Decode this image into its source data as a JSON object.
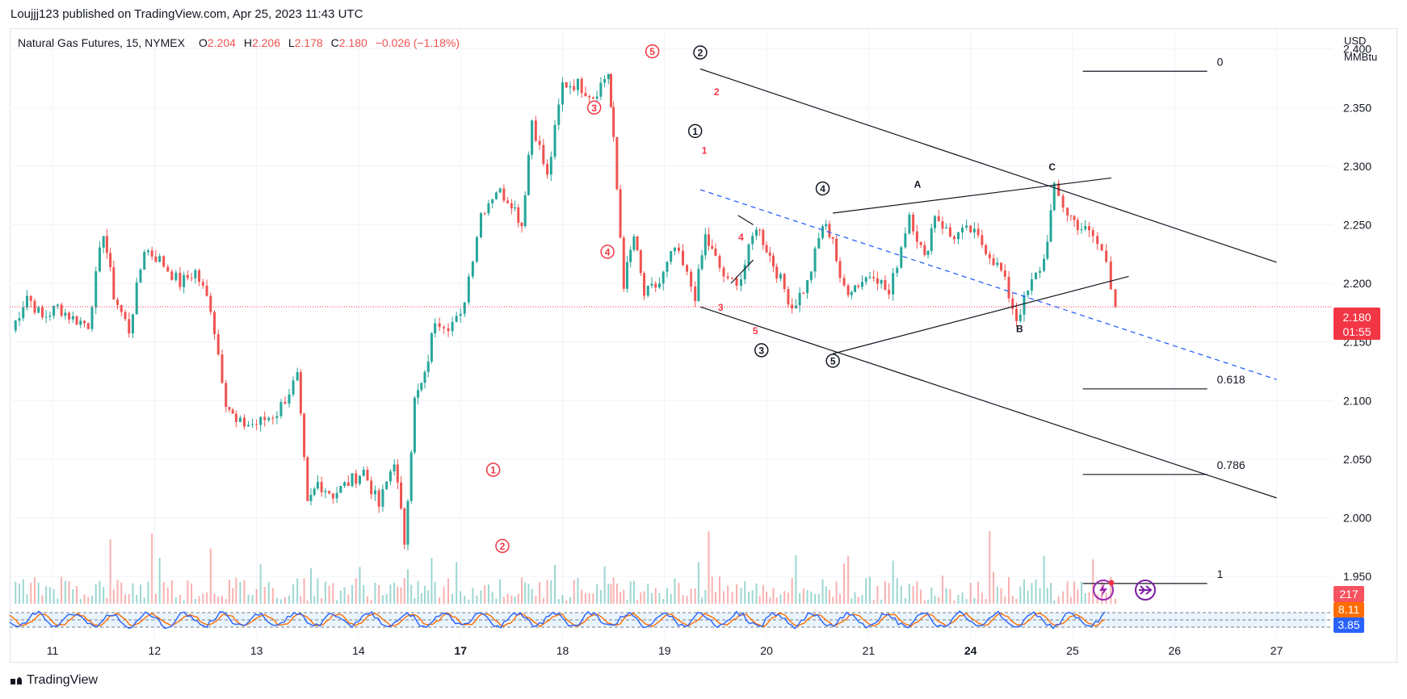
{
  "publisher": "Loujjj123 published on TradingView.com, Apr 25, 2023 11:43 UTC",
  "footer_brand": "TradingView",
  "legend": {
    "symbol": "Natural Gas Futures, 15, NYMEX",
    "o_label": "O",
    "o": "2.204",
    "h_label": "H",
    "h": "2.206",
    "l_label": "L",
    "l": "2.178",
    "c_label": "C",
    "c": "2.180",
    "change": "−0.026 (−1.18%)"
  },
  "colors": {
    "up": "#26a69a",
    "down": "#ef5350",
    "wave_red": "#f23645",
    "line": "#131722",
    "dash": "#2962ff",
    "rsi_fast": "#2962ff",
    "rsi_slow": "#ff6d00"
  },
  "price_badge": {
    "price": "2.180",
    "timer": "01:55"
  },
  "volume_badge": "217",
  "osc_badges": [
    "8.11",
    "3.85"
  ],
  "chart_data": {
    "type": "line",
    "title": "",
    "xlabel": "",
    "ylabel": "",
    "unit": "USD\nMMBtu",
    "unit_lines": [
      "USD",
      "MMBtu"
    ],
    "ylim": [
      1.915,
      2.417
    ],
    "yticks": [
      "2.400",
      "2.350",
      "2.300",
      "2.250",
      "2.200",
      "2.150",
      "2.100",
      "2.050",
      "2.000",
      "1.950"
    ],
    "xticks": [
      {
        "label": "11",
        "day": 11,
        "bold": false
      },
      {
        "label": "12",
        "day": 12,
        "bold": false
      },
      {
        "label": "13",
        "day": 13,
        "bold": false
      },
      {
        "label": "14",
        "day": 14,
        "bold": false
      },
      {
        "label": "17",
        "day": 15,
        "bold": true
      },
      {
        "label": "18",
        "day": 16,
        "bold": false
      },
      {
        "label": "19",
        "day": 17,
        "bold": false
      },
      {
        "label": "20",
        "day": 18,
        "bold": false
      },
      {
        "label": "21",
        "day": 19,
        "bold": false
      },
      {
        "label": "24",
        "day": 20,
        "bold": true
      },
      {
        "label": "25",
        "day": 21,
        "bold": false
      },
      {
        "label": "26",
        "day": 22,
        "bold": false
      },
      {
        "label": "27",
        "day": 23,
        "bold": false
      }
    ],
    "xlim": [
      10.58,
      23.55
    ],
    "grid": true,
    "price": {
      "x": [
        10.6,
        10.75,
        10.9,
        11.05,
        11.2,
        11.35,
        11.5,
        11.6,
        11.75,
        11.9,
        12.05,
        12.25,
        12.4,
        12.55,
        12.7,
        12.8,
        13.0,
        13.2,
        13.4,
        13.5,
        13.6,
        13.75,
        13.9,
        14.05,
        14.2,
        14.35,
        14.45,
        14.55,
        14.65,
        14.75,
        14.88,
        15.0,
        15.2,
        15.35,
        15.5,
        15.6,
        15.7,
        15.85,
        16.0,
        16.15,
        16.3,
        16.45,
        16.5,
        16.6,
        16.7,
        16.8,
        16.95,
        17.1,
        17.3,
        17.4,
        17.5,
        17.62,
        17.75,
        17.9,
        18.0,
        18.1,
        18.25,
        18.4,
        18.55,
        18.65,
        18.72,
        18.8,
        18.9,
        19.05,
        19.2,
        19.4,
        19.55,
        19.65,
        19.8,
        20.0,
        20.15,
        20.3,
        20.45,
        20.6,
        20.72,
        20.82,
        20.95,
        21.05,
        21.2,
        21.33,
        21.42
      ],
      "close": [
        2.16,
        2.19,
        2.17,
        2.18,
        2.17,
        2.165,
        2.245,
        2.19,
        2.16,
        2.23,
        2.22,
        2.2,
        2.21,
        2.18,
        2.1,
        2.08,
        2.08,
        2.09,
        2.12,
        2.01,
        2.03,
        2.02,
        2.03,
        2.04,
        2.01,
        2.05,
        1.98,
        2.1,
        2.12,
        2.17,
        2.165,
        2.17,
        2.26,
        2.28,
        2.27,
        2.25,
        2.34,
        2.29,
        2.37,
        2.37,
        2.36,
        2.38,
        2.32,
        2.2,
        2.24,
        2.19,
        2.2,
        2.23,
        2.19,
        2.24,
        2.22,
        2.2,
        2.205,
        2.25,
        2.23,
        2.21,
        2.18,
        2.2,
        2.25,
        2.24,
        2.2,
        2.195,
        2.2,
        2.21,
        2.19,
        2.26,
        2.22,
        2.26,
        2.24,
        2.245,
        2.23,
        2.21,
        2.17,
        2.2,
        2.22,
        2.28,
        2.26,
        2.25,
        2.24,
        2.22,
        2.18
      ]
    },
    "volume": [
      217
    ],
    "oscillator": {
      "values": [
        "8.11",
        "3.85"
      ]
    },
    "wave_labels_black": [
      {
        "t": "2",
        "x": 17.35,
        "y": 2.397
      },
      {
        "t": "1",
        "x": 17.3,
        "y": 2.33
      },
      {
        "t": "4",
        "x": 18.55,
        "y": 2.281
      },
      {
        "t": "3",
        "x": 17.95,
        "y": 2.143
      },
      {
        "t": "5",
        "x": 18.65,
        "y": 2.134
      }
    ],
    "wave_labels_red": [
      {
        "t": "5",
        "x": 16.88,
        "y": 2.398
      },
      {
        "t": "3",
        "x": 16.31,
        "y": 2.35
      },
      {
        "t": "4",
        "x": 16.44,
        "y": 2.227
      },
      {
        "t": "1",
        "x": 15.32,
        "y": 2.041
      },
      {
        "t": "2",
        "x": 15.41,
        "y": 1.976
      }
    ],
    "wave_labels_small_red": [
      {
        "t": "2",
        "x": 17.51,
        "y": 2.364
      },
      {
        "t": "1",
        "x": 17.39,
        "y": 2.314
      },
      {
        "t": "4",
        "x": 17.75,
        "y": 2.24
      },
      {
        "t": "3",
        "x": 17.55,
        "y": 2.18
      },
      {
        "t": "5",
        "x": 17.89,
        "y": 2.16
      }
    ],
    "abc_labels": [
      {
        "t": "A",
        "x": 19.48,
        "y": 2.285
      },
      {
        "t": "B",
        "x": 20.48,
        "y": 2.162
      },
      {
        "t": "C",
        "x": 20.8,
        "y": 2.3
      }
    ],
    "fib_levels": [
      {
        "label": "0",
        "y": 2.381
      },
      {
        "label": "0.618",
        "y": 2.11
      },
      {
        "label": "0.786",
        "y": 2.037
      },
      {
        "label": "1",
        "y": 1.944
      }
    ],
    "fib_x": [
      21.1,
      22.32
    ],
    "trendlines": [
      {
        "x1": 17.35,
        "y1": 2.383,
        "x2": 23.0,
        "y2": 2.218
      },
      {
        "x1": 17.35,
        "y1": 2.18,
        "x2": 23.0,
        "y2": 2.017
      },
      {
        "x1": 18.65,
        "y1": 2.14,
        "x2": 21.55,
        "y2": 2.206
      },
      {
        "x1": 18.65,
        "y1": 2.26,
        "x2": 21.38,
        "y2": 2.29
      },
      {
        "x1": 17.72,
        "y1": 2.258,
        "x2": 17.87,
        "y2": 2.25
      },
      {
        "x1": 17.65,
        "y1": 2.2,
        "x2": 17.87,
        "y2": 2.22
      }
    ],
    "dashed_line": {
      "x1": 17.35,
      "y1": 2.28,
      "x2": 23.0,
      "y2": 2.118
    },
    "current_price": 2.18
  }
}
